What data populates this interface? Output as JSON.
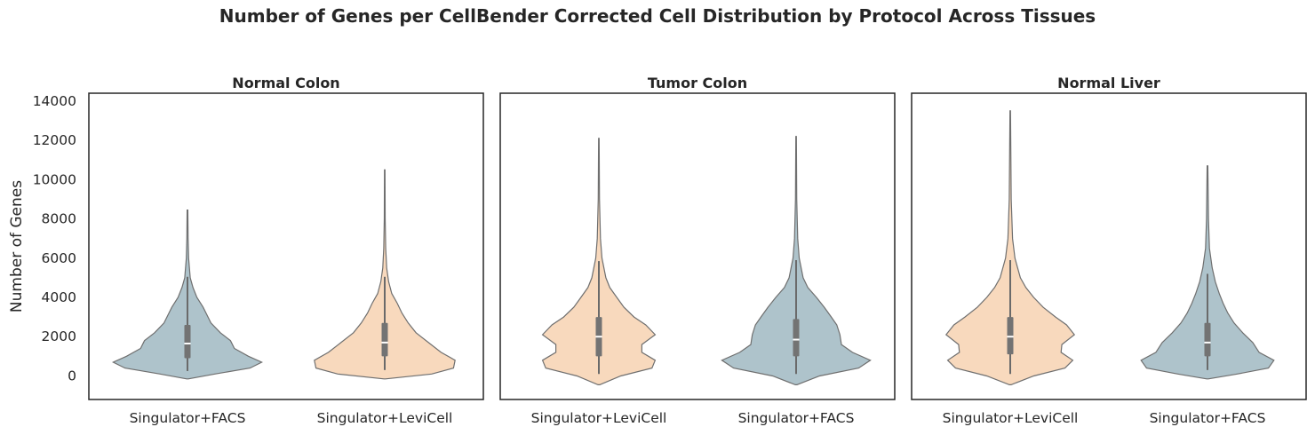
{
  "title": "Number of Genes per CellBender Corrected Cell Distribution by Protocol Across Tissues",
  "colors": {
    "Singulator+FACS": "#aec3cb",
    "Singulator+LeviCell": "#f8d9bd"
  },
  "chart_data": [
    {
      "type": "violin",
      "title": "Normal Colon",
      "ylabel": "Number of Genes",
      "ylim": [
        -1200,
        14400
      ],
      "yticks": [
        0,
        2000,
        4000,
        6000,
        8000,
        10000,
        12000,
        14000
      ],
      "categories": [
        "Singulator+FACS",
        "Singulator+LeviCell"
      ],
      "series": [
        {
          "category": "Singulator+FACS",
          "min": -150,
          "max": 8450,
          "q1": 900,
          "median": 1650,
          "q3": 2600,
          "whisker_low": 250,
          "whisker_high": 5050,
          "density": [
            [
              -150,
              0.01
            ],
            [
              100,
              0.35
            ],
            [
              400,
              0.8
            ],
            [
              700,
              0.95
            ],
            [
              1000,
              0.78
            ],
            [
              1400,
              0.6
            ],
            [
              1800,
              0.55
            ],
            [
              2200,
              0.42
            ],
            [
              2700,
              0.3
            ],
            [
              3100,
              0.25
            ],
            [
              3500,
              0.2
            ],
            [
              4000,
              0.12
            ],
            [
              4500,
              0.07
            ],
            [
              5000,
              0.035
            ],
            [
              6000,
              0.015
            ],
            [
              7000,
              0.008
            ],
            [
              8450,
              0.004
            ]
          ]
        },
        {
          "category": "Singulator+LeviCell",
          "min": -150,
          "max": 10500,
          "q1": 1000,
          "median": 1700,
          "q3": 2700,
          "whisker_low": 300,
          "whisker_high": 5050,
          "density": [
            [
              -150,
              0.01
            ],
            [
              100,
              0.6
            ],
            [
              400,
              0.88
            ],
            [
              800,
              0.9
            ],
            [
              1200,
              0.72
            ],
            [
              1700,
              0.56
            ],
            [
              2200,
              0.4
            ],
            [
              2700,
              0.3
            ],
            [
              3200,
              0.22
            ],
            [
              3700,
              0.16
            ],
            [
              4200,
              0.09
            ],
            [
              4800,
              0.05
            ],
            [
              5500,
              0.025
            ],
            [
              6500,
              0.012
            ],
            [
              8000,
              0.006
            ],
            [
              10500,
              0.003
            ]
          ]
        }
      ]
    },
    {
      "type": "violin",
      "title": "Tumor Colon",
      "ylim": [
        -1200,
        14400
      ],
      "categories": [
        "Singulator+LeviCell",
        "Singulator+FACS"
      ],
      "series": [
        {
          "category": "Singulator+LeviCell",
          "min": -450,
          "max": 12100,
          "q1": 1000,
          "median": 2000,
          "q3": 3000,
          "whisker_low": 100,
          "whisker_high": 5850,
          "density": [
            [
              -450,
              0.01
            ],
            [
              0,
              0.28
            ],
            [
              400,
              0.68
            ],
            [
              800,
              0.72
            ],
            [
              1200,
              0.55
            ],
            [
              1600,
              0.55
            ],
            [
              2100,
              0.72
            ],
            [
              2600,
              0.6
            ],
            [
              3000,
              0.45
            ],
            [
              3500,
              0.32
            ],
            [
              4000,
              0.23
            ],
            [
              4500,
              0.14
            ],
            [
              5000,
              0.09
            ],
            [
              6000,
              0.04
            ],
            [
              7000,
              0.02
            ],
            [
              9000,
              0.008
            ],
            [
              12100,
              0.003
            ]
          ]
        },
        {
          "category": "Singulator+FACS",
          "min": -450,
          "max": 12200,
          "q1": 1000,
          "median": 1850,
          "q3": 2900,
          "whisker_low": 100,
          "whisker_high": 5900,
          "density": [
            [
              -450,
              0.01
            ],
            [
              0,
              0.3
            ],
            [
              400,
              0.8
            ],
            [
              800,
              0.95
            ],
            [
              1200,
              0.72
            ],
            [
              1600,
              0.58
            ],
            [
              2100,
              0.56
            ],
            [
              2600,
              0.52
            ],
            [
              3000,
              0.45
            ],
            [
              3500,
              0.36
            ],
            [
              4000,
              0.26
            ],
            [
              4500,
              0.15
            ],
            [
              5000,
              0.09
            ],
            [
              6000,
              0.04
            ],
            [
              7000,
              0.02
            ],
            [
              9000,
              0.008
            ],
            [
              12200,
              0.003
            ]
          ]
        }
      ]
    },
    {
      "type": "violin",
      "title": "Normal Liver",
      "ylim": [
        -1200,
        14400
      ],
      "categories": [
        "Singulator+LeviCell",
        "Singulator+FACS"
      ],
      "series": [
        {
          "category": "Singulator+LeviCell",
          "min": -450,
          "max": 13500,
          "q1": 1100,
          "median": 2000,
          "q3": 3000,
          "whisker_low": 100,
          "whisker_high": 5900,
          "density": [
            [
              -450,
              0.01
            ],
            [
              0,
              0.3
            ],
            [
              400,
              0.7
            ],
            [
              800,
              0.8
            ],
            [
              1200,
              0.65
            ],
            [
              1600,
              0.66
            ],
            [
              2100,
              0.82
            ],
            [
              2600,
              0.72
            ],
            [
              3000,
              0.58
            ],
            [
              3500,
              0.42
            ],
            [
              4000,
              0.3
            ],
            [
              4500,
              0.2
            ],
            [
              5000,
              0.13
            ],
            [
              6000,
              0.06
            ],
            [
              7000,
              0.03
            ],
            [
              9000,
              0.012
            ],
            [
              13500,
              0.003
            ]
          ]
        },
        {
          "category": "Singulator+FACS",
          "min": -150,
          "max": 10700,
          "q1": 1000,
          "median": 1700,
          "q3": 2700,
          "whisker_low": 300,
          "whisker_high": 5200,
          "density": [
            [
              -150,
              0.01
            ],
            [
              100,
              0.38
            ],
            [
              400,
              0.78
            ],
            [
              800,
              0.85
            ],
            [
              1200,
              0.66
            ],
            [
              1700,
              0.58
            ],
            [
              2200,
              0.45
            ],
            [
              2700,
              0.34
            ],
            [
              3200,
              0.26
            ],
            [
              3700,
              0.2
            ],
            [
              4200,
              0.15
            ],
            [
              4800,
              0.1
            ],
            [
              5500,
              0.06
            ],
            [
              6500,
              0.025
            ],
            [
              8000,
              0.012
            ],
            [
              10700,
              0.004
            ]
          ]
        }
      ]
    }
  ]
}
